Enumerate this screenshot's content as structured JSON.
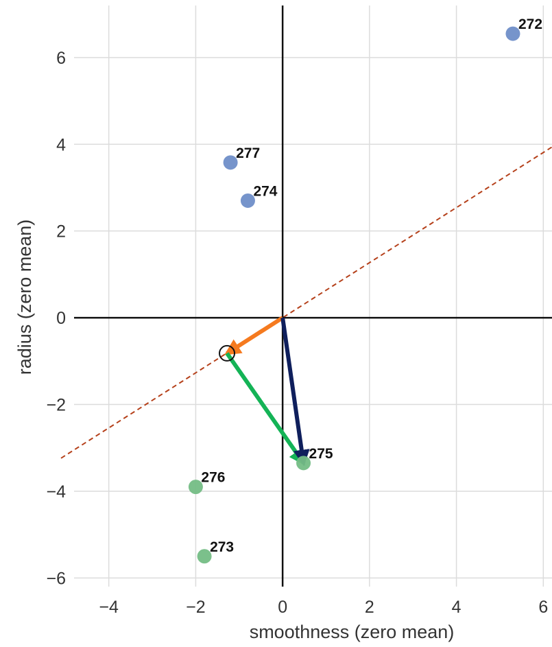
{
  "chart_data": {
    "type": "scatter",
    "title": "",
    "xlabel": "smoothness (zero mean)",
    "ylabel": "radius (zero mean)",
    "xlim": [
      -4.8,
      6.2
    ],
    "ylim": [
      -6.2,
      7.2
    ],
    "xticks": [
      -4,
      -2,
      0,
      2,
      4,
      6
    ],
    "yticks": [
      -6,
      -4,
      -2,
      0,
      2,
      4,
      6
    ],
    "xtick_labels": [
      "−4",
      "−2",
      "0",
      "2",
      "4",
      "6"
    ],
    "ytick_labels": [
      "−6",
      "−4",
      "−2",
      "0",
      "2",
      "4",
      "6"
    ],
    "grid": true,
    "points": [
      {
        "label": "272",
        "x": 5.3,
        "y": 6.55,
        "color": "#6f8ec8"
      },
      {
        "label": "277",
        "x": -1.2,
        "y": 3.58,
        "color": "#6f8ec8"
      },
      {
        "label": "274",
        "x": -0.8,
        "y": 2.7,
        "color": "#6f8ec8"
      },
      {
        "label": "275",
        "x": 0.48,
        "y": -3.35,
        "color": "#74bd85"
      },
      {
        "label": "276",
        "x": -2.0,
        "y": -3.9,
        "color": "#74bd85"
      },
      {
        "label": "273",
        "x": -1.8,
        "y": -5.5,
        "color": "#74bd85"
      }
    ],
    "projection_line": {
      "slope": 0.635,
      "intercept": 0.0,
      "color": "#b5401a",
      "style": "dashed"
    },
    "projected_point": {
      "x": -1.28,
      "y": -0.82
    },
    "vectors": [
      {
        "name": "projection",
        "from": [
          0,
          0
        ],
        "to": [
          -1.28,
          -0.82
        ],
        "color": "#f57a1f"
      },
      {
        "name": "residual",
        "from": [
          -1.28,
          -0.82
        ],
        "to": [
          0.48,
          -3.35
        ],
        "color": "#14b356"
      },
      {
        "name": "data",
        "from": [
          0,
          0
        ],
        "to": [
          0.48,
          -3.35
        ],
        "color": "#0f1f5c"
      }
    ]
  }
}
